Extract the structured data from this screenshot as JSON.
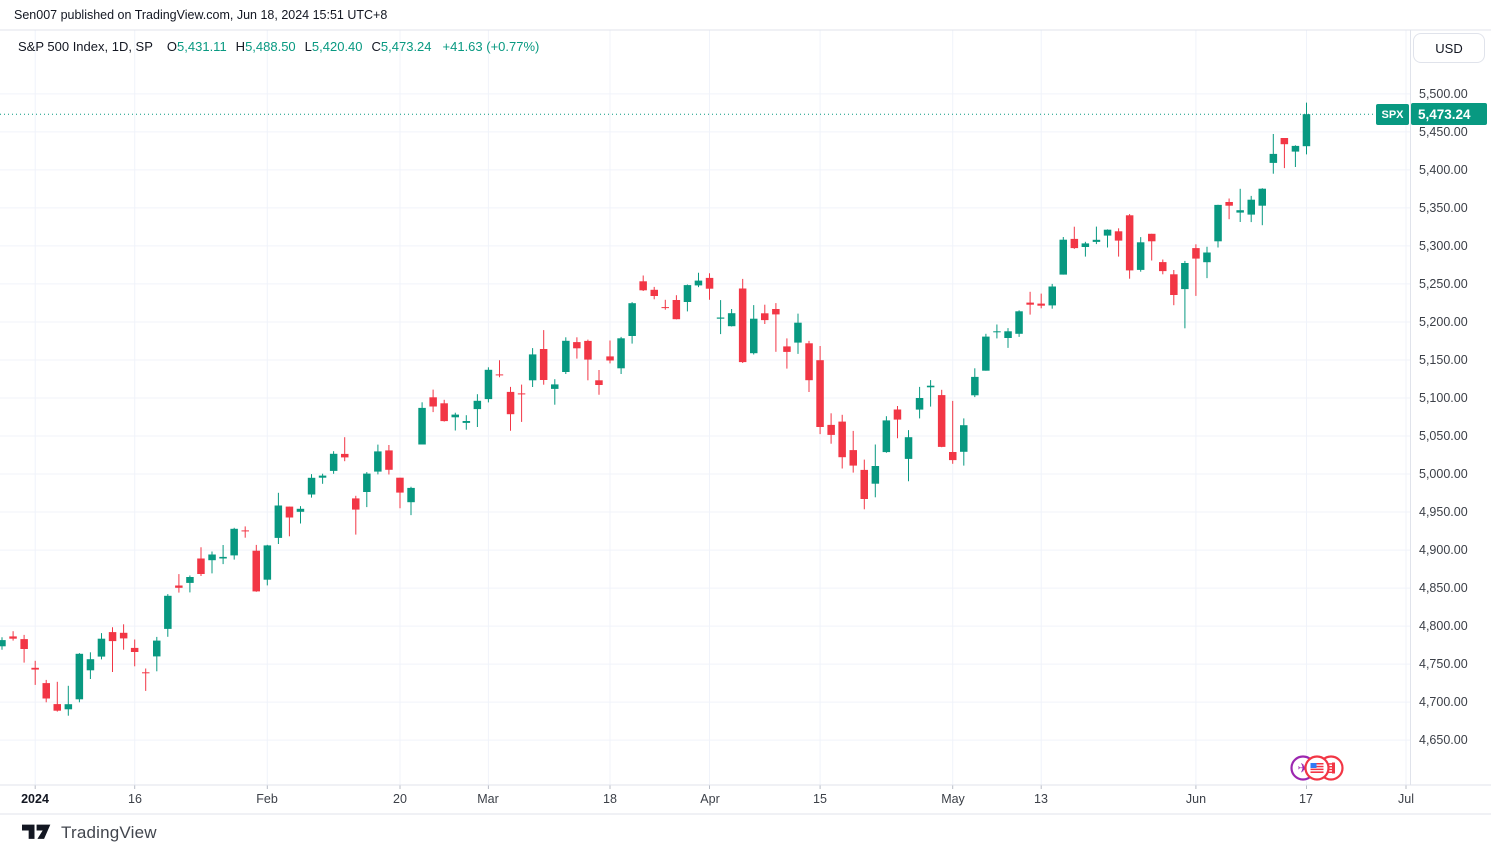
{
  "attribution": "Sen007 published on TradingView.com, Jun 18, 2024 15:51 UTC+8",
  "toolbar": {
    "currency": "USD"
  },
  "legend": {
    "symbol": "S&P 500 Index, 1D, SP",
    "open_label": "O",
    "open": "5,431.11",
    "high_label": "H",
    "high": "5,488.50",
    "low_label": "L",
    "low": "5,420.40",
    "close_label": "C",
    "close": "5,473.24",
    "change": "+41.63 (+0.77%)"
  },
  "price_label": {
    "ticker": "SPX",
    "last_price": "5,473.24"
  },
  "footer": {
    "brand": "TradingView"
  },
  "colors": {
    "up": "#089981",
    "down": "#f23645",
    "grid": "#f0f3fa",
    "border": "#e0e3eb",
    "axis_text": "#3c4048",
    "text": "#131722",
    "tick_mark": "#b8bcc6",
    "event_purple": "#9c27b0",
    "event_red": "#f23645",
    "flag_blue": "#3179f5"
  },
  "time_axis_icons": [
    "airplane-event-icon",
    "us-flag-event-icon",
    "flag-event-icon"
  ],
  "chart_data": {
    "type": "candlestick",
    "title": "S&P 500 Index, 1D, SP",
    "last_price": 5473.24,
    "y_axis": {
      "min": 4591,
      "max": 5584,
      "tick_step": 50,
      "ticks": [
        5500,
        5450,
        5400,
        5350,
        5300,
        5250,
        5200,
        5150,
        5100,
        5050,
        5000,
        4950,
        4900,
        4850,
        4800,
        4750,
        4700,
        4650
      ]
    },
    "x_ticks": [
      {
        "label": "2024",
        "index": 3,
        "major": true
      },
      {
        "label": "16",
        "index": 12
      },
      {
        "label": "Feb",
        "index": 24
      },
      {
        "label": "20",
        "index": 36
      },
      {
        "label": "Mar",
        "index": 44
      },
      {
        "label": "18",
        "index": 55
      },
      {
        "label": "Apr",
        "index": 64
      },
      {
        "label": "15",
        "index": 74
      },
      {
        "label": "May",
        "index": 86
      },
      {
        "label": "13",
        "index": 94
      },
      {
        "label": "Jun",
        "index": 108
      },
      {
        "label": "17",
        "index": 118
      },
      {
        "label": "Jul",
        "index": 127
      }
    ],
    "candles": [
      [
        "2023-12-27",
        4773.45,
        4785.39,
        4768.9,
        4781.58
      ],
      [
        "2023-12-28",
        4786.44,
        4793.3,
        4780.98,
        4783.35
      ],
      [
        "2023-12-29",
        4782.88,
        4788.43,
        4751.99,
        4769.83
      ],
      [
        "2024-01-02",
        4745.2,
        4754.33,
        4722.67,
        4742.83
      ],
      [
        "2024-01-03",
        4725.07,
        4729.29,
        4699.71,
        4704.81
      ],
      [
        "2024-01-04",
        4697.42,
        4726.78,
        4687.53,
        4688.68
      ],
      [
        "2024-01-05",
        4690.57,
        4721.49,
        4682.11,
        4697.24
      ],
      [
        "2024-01-08",
        4703.7,
        4764.54,
        4699.82,
        4763.54
      ],
      [
        "2024-01-09",
        4741.93,
        4765.47,
        4730.35,
        4756.5
      ],
      [
        "2024-01-10",
        4759.94,
        4790.8,
        4756.2,
        4783.45
      ],
      [
        "2024-01-11",
        4792.13,
        4798.5,
        4739.58,
        4780.24
      ],
      [
        "2024-01-12",
        4791.18,
        4802.4,
        4768.98,
        4783.83
      ],
      [
        "2024-01-16",
        4771.35,
        4782.34,
        4747.12,
        4765.98
      ],
      [
        "2024-01-17",
        4739.25,
        4744.23,
        4714.82,
        4739.21
      ],
      [
        "2024-01-18",
        4760.1,
        4785.79,
        4740.57,
        4780.94
      ],
      [
        "2024-01-19",
        4796.28,
        4842.07,
        4785.87,
        4839.81
      ],
      [
        "2024-01-22",
        4853.42,
        4868.41,
        4844.05,
        4850.43
      ],
      [
        "2024-01-23",
        4856.8,
        4866.48,
        4844.37,
        4864.6
      ],
      [
        "2024-01-24",
        4888.91,
        4903.68,
        4865.94,
        4868.55
      ],
      [
        "2024-01-25",
        4886.66,
        4898.15,
        4869.34,
        4894.16
      ],
      [
        "2024-01-26",
        4888.91,
        4906.69,
        4881.47,
        4890.97
      ],
      [
        "2024-01-29",
        4892.95,
        4929.31,
        4887.4,
        4927.93
      ],
      [
        "2024-01-30",
        4925.89,
        4931.09,
        4916.27,
        4924.97
      ],
      [
        "2024-01-31",
        4899.19,
        4906.75,
        4845.15,
        4845.65
      ],
      [
        "2024-02-01",
        4861.11,
        4906.97,
        4853.52,
        4906.19
      ],
      [
        "2024-02-02",
        4916.06,
        4975.29,
        4907.99,
        4958.61
      ],
      [
        "2024-02-05",
        4957.19,
        4957.19,
        4918.09,
        4942.81
      ],
      [
        "2024-02-06",
        4950.25,
        4957.79,
        4934.88,
        4954.23
      ],
      [
        "2024-02-07",
        4973.05,
        4999.89,
        4969.05,
        4995.06
      ],
      [
        "2024-02-08",
        4995.16,
        5000.4,
        4987.09,
        4997.91
      ],
      [
        "2024-02-09",
        5004.17,
        5030.06,
        5000.34,
        5026.61
      ],
      [
        "2024-02-12",
        5026.41,
        5048.39,
        5016.83,
        5021.84
      ],
      [
        "2024-02-13",
        4967.94,
        4971.3,
        4920.31,
        4953.17
      ],
      [
        "2024-02-14",
        4976.44,
        5002.52,
        4956.45,
        5000.62
      ],
      [
        "2024-02-15",
        5003.14,
        5038.7,
        4999.52,
        5029.73
      ],
      [
        "2024-02-16",
        5031.13,
        5038.16,
        4999.44,
        5005.57
      ],
      [
        "2024-02-20",
        4995.16,
        4995.16,
        4955.02,
        4975.51
      ],
      [
        "2024-02-21",
        4963.03,
        4983.21,
        4946.0,
        4981.8
      ],
      [
        "2024-02-22",
        5038.83,
        5094.39,
        5038.83,
        5087.03
      ],
      [
        "2024-02-23",
        5100.92,
        5111.06,
        5081.46,
        5088.8
      ],
      [
        "2024-02-26",
        5093.0,
        5097.66,
        5068.91,
        5069.53
      ],
      [
        "2024-02-27",
        5074.6,
        5080.69,
        5057.29,
        5078.18
      ],
      [
        "2024-02-28",
        5067.2,
        5077.37,
        5058.35,
        5069.76
      ],
      [
        "2024-02-29",
        5085.36,
        5104.99,
        5061.89,
        5096.27
      ],
      [
        "2024-03-01",
        5098.51,
        5140.33,
        5094.16,
        5137.08
      ],
      [
        "2024-03-04",
        5130.99,
        5149.67,
        5127.18,
        5130.95
      ],
      [
        "2024-03-05",
        5108.03,
        5114.54,
        5056.82,
        5078.65
      ],
      [
        "2024-03-06",
        5106.0,
        5117.68,
        5068.59,
        5104.76
      ],
      [
        "2024-03-07",
        5123.31,
        5165.62,
        5114.48,
        5157.36
      ],
      [
        "2024-03-08",
        5164.46,
        5189.26,
        5117.5,
        5123.69
      ],
      [
        "2024-03-11",
        5111.96,
        5124.66,
        5091.14,
        5117.94
      ],
      [
        "2024-03-12",
        5134.27,
        5179.87,
        5131.59,
        5175.27
      ],
      [
        "2024-03-13",
        5173.49,
        5179.87,
        5151.88,
        5165.31
      ],
      [
        "2024-03-14",
        5175.14,
        5176.85,
        5123.3,
        5150.48
      ],
      [
        "2024-03-15",
        5123.31,
        5136.86,
        5104.35,
        5117.09
      ],
      [
        "2024-03-18",
        5154.77,
        5175.6,
        5145.47,
        5149.42
      ],
      [
        "2024-03-19",
        5139.09,
        5180.31,
        5131.59,
        5178.51
      ],
      [
        "2024-03-20",
        5181.42,
        5226.19,
        5171.55,
        5224.62
      ],
      [
        "2024-03-21",
        5253.43,
        5261.1,
        5240.68,
        5241.53
      ],
      [
        "2024-03-22",
        5242.32,
        5246.09,
        5229.87,
        5234.18
      ],
      [
        "2024-03-25",
        5219.52,
        5229.09,
        5216.09,
        5218.19
      ],
      [
        "2024-03-26",
        5228.85,
        5235.16,
        5203.42,
        5203.58
      ],
      [
        "2024-03-27",
        5226.31,
        5249.26,
        5213.92,
        5248.49
      ],
      [
        "2024-03-28",
        5248.03,
        5264.85,
        5245.82,
        5254.35
      ],
      [
        "2024-04-01",
        5257.97,
        5263.95,
        5229.2,
        5243.77
      ],
      [
        "2024-04-02",
        5204.29,
        5228.75,
        5184.05,
        5205.81
      ],
      [
        "2024-04-03",
        5194.37,
        5217.02,
        5194.05,
        5211.49
      ],
      [
        "2024-04-04",
        5244.05,
        5256.59,
        5146.06,
        5147.21
      ],
      [
        "2024-04-05",
        5158.95,
        5222.18,
        5157.21,
        5204.34
      ],
      [
        "2024-04-08",
        5211.37,
        5222.67,
        5197.35,
        5202.39
      ],
      [
        "2024-04-09",
        5217.03,
        5224.81,
        5160.78,
        5209.91
      ],
      [
        "2024-04-10",
        5167.88,
        5178.43,
        5138.7,
        5160.64
      ],
      [
        "2024-04-11",
        5172.95,
        5211.02,
        5157.94,
        5199.06
      ],
      [
        "2024-04-12",
        5171.95,
        5175.03,
        5107.94,
        5123.41
      ],
      [
        "2024-04-15",
        5149.67,
        5168.43,
        5052.47,
        5061.82
      ],
      [
        "2024-04-16",
        5064.59,
        5079.84,
        5039.83,
        5051.41
      ],
      [
        "2024-04-17",
        5068.97,
        5077.96,
        5007.25,
        5022.21
      ],
      [
        "2024-04-18",
        5031.52,
        5056.66,
        5001.89,
        5011.12
      ],
      [
        "2024-04-19",
        5005.44,
        5019.02,
        4953.56,
        4967.23
      ],
      [
        "2024-04-22",
        4987.33,
        5038.84,
        4969.4,
        5010.6
      ],
      [
        "2024-04-23",
        5028.85,
        5076.12,
        5027.96,
        5070.55
      ],
      [
        "2024-04-24",
        5084.86,
        5089.48,
        5047.02,
        5071.63
      ],
      [
        "2024-04-25",
        5019.88,
        5057.75,
        4990.58,
        5048.42
      ],
      [
        "2024-04-26",
        5084.65,
        5114.62,
        5073.14,
        5099.96
      ],
      [
        "2024-04-29",
        5114.13,
        5123.49,
        5088.65,
        5116.17
      ],
      [
        "2024-04-30",
        5103.78,
        5110.83,
        5035.31,
        5035.69
      ],
      [
        "2024-05-01",
        5029.03,
        5096.12,
        5013.45,
        5018.39
      ],
      [
        "2024-05-02",
        5029.22,
        5073.21,
        5011.05,
        5064.2
      ],
      [
        "2024-05-03",
        5103.64,
        5139.12,
        5101.22,
        5127.79
      ],
      [
        "2024-05-06",
        5135.94,
        5184.42,
        5135.94,
        5180.74
      ],
      [
        "2024-05-07",
        5187.6,
        5196.6,
        5178.37,
        5187.7
      ],
      [
        "2024-05-08",
        5178.87,
        5191.95,
        5165.89,
        5187.67
      ],
      [
        "2024-05-09",
        5184.46,
        5215.3,
        5180.42,
        5214.08
      ],
      [
        "2024-05-10",
        5225.49,
        5239.66,
        5209.68,
        5222.68
      ],
      [
        "2024-05-13",
        5224.2,
        5237.26,
        5217.98,
        5221.42
      ],
      [
        "2024-05-14",
        5221.81,
        5250.0,
        5217.47,
        5246.68
      ],
      [
        "2024-05-15",
        5262.29,
        5311.76,
        5262.29,
        5308.15
      ],
      [
        "2024-05-16",
        5309.26,
        5325.32,
        5296.16,
        5297.1
      ],
      [
        "2024-05-17",
        5298.52,
        5305.45,
        5286.01,
        5303.27
      ],
      [
        "2024-05-20",
        5305.35,
        5325.49,
        5302.4,
        5308.13
      ],
      [
        "2024-05-21",
        5313.69,
        5321.78,
        5297.93,
        5321.41
      ],
      [
        "2024-05-22",
        5319.28,
        5323.18,
        5286.01,
        5307.01
      ],
      [
        "2024-05-23",
        5340.26,
        5341.88,
        5256.93,
        5267.84
      ],
      [
        "2024-05-24",
        5268.46,
        5311.65,
        5266.14,
        5304.72
      ],
      [
        "2024-05-28",
        5315.91,
        5315.91,
        5280.89,
        5306.04
      ],
      [
        "2024-05-29",
        5278.73,
        5282.18,
        5262.7,
        5266.95
      ],
      [
        "2024-05-30",
        5262.71,
        5268.39,
        5222.1,
        5235.48
      ],
      [
        "2024-05-31",
        5243.21,
        5280.33,
        5191.68,
        5277.51
      ],
      [
        "2024-06-03",
        5297.15,
        5302.11,
        5234.32,
        5283.4
      ],
      [
        "2024-06-04",
        5278.61,
        5298.8,
        5257.63,
        5291.34
      ],
      [
        "2024-06-05",
        5306.11,
        5354.16,
        5297.89,
        5354.03
      ],
      [
        "2024-06-06",
        5357.8,
        5362.35,
        5335.16,
        5352.96
      ],
      [
        "2024-06-07",
        5343.81,
        5375.08,
        5331.52,
        5346.99
      ],
      [
        "2024-06-10",
        5341.22,
        5365.79,
        5331.33,
        5360.79
      ],
      [
        "2024-06-11",
        5353.0,
        5375.95,
        5327.25,
        5375.32
      ],
      [
        "2024-06-12",
        5409.13,
        5447.25,
        5395.05,
        5421.03
      ],
      [
        "2024-06-13",
        5441.93,
        5441.93,
        5402.42,
        5433.74
      ],
      [
        "2024-06-14",
        5424.08,
        5432.39,
        5403.75,
        5431.6
      ],
      [
        "2024-06-17",
        5431.11,
        5488.5,
        5420.4,
        5473.24
      ]
    ]
  }
}
